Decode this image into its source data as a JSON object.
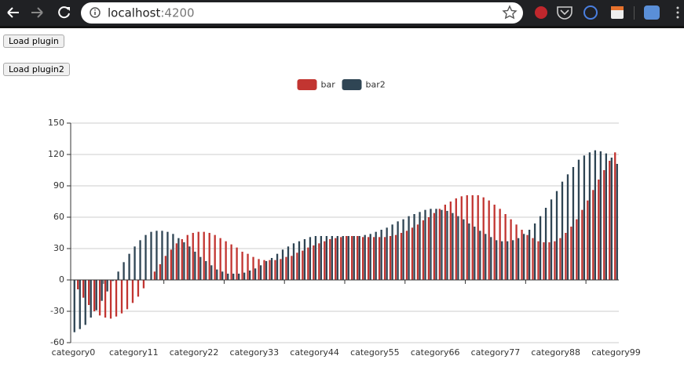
{
  "browser": {
    "host": "localhost",
    "port": ":4200"
  },
  "buttons": [
    "Load plugin",
    "Load plugin2"
  ],
  "chart_data": {
    "type": "bar",
    "categories": [
      "category0",
      null,
      null,
      null,
      null,
      null,
      null,
      null,
      null,
      null,
      null,
      "category11",
      null,
      null,
      null,
      null,
      null,
      null,
      null,
      null,
      null,
      null,
      "category22",
      null,
      null,
      null,
      null,
      null,
      null,
      null,
      null,
      null,
      null,
      "category33",
      null,
      null,
      null,
      null,
      null,
      null,
      null,
      null,
      null,
      null,
      "category44",
      null,
      null,
      null,
      null,
      null,
      null,
      null,
      null,
      null,
      null,
      "category55",
      null,
      null,
      null,
      null,
      null,
      null,
      null,
      null,
      null,
      null,
      "category66",
      null,
      null,
      null,
      null,
      null,
      null,
      null,
      null,
      null,
      null,
      "category77",
      null,
      null,
      null,
      null,
      null,
      null,
      null,
      null,
      null,
      null,
      "category88",
      null,
      null,
      null,
      null,
      null,
      null,
      null,
      null,
      null,
      null,
      "category99"
    ],
    "series": [
      {
        "name": "bar",
        "color": "#c23531",
        "values": [
          0,
          -9,
          -17,
          -24,
          -30,
          -34,
          -36,
          -37,
          -35,
          -32,
          -28,
          -22,
          -16,
          -8,
          0,
          8,
          15,
          23,
          29,
          35,
          39,
          43,
          45,
          46,
          46,
          45,
          43,
          40,
          37,
          34,
          31,
          27,
          25,
          22,
          20,
          19,
          19,
          19,
          20,
          22,
          23,
          26,
          28,
          31,
          33,
          35,
          37,
          39,
          40,
          41,
          42,
          42,
          42,
          41,
          41,
          41,
          41,
          41,
          42,
          43,
          45,
          47,
          50,
          53,
          57,
          60,
          64,
          68,
          72,
          75,
          78,
          80,
          81,
          81,
          81,
          79,
          76,
          72,
          68,
          63,
          58,
          53,
          48,
          43,
          40,
          37,
          36,
          36,
          37,
          40,
          45,
          51,
          58,
          67,
          76,
          86,
          96,
          105,
          114,
          122
        ]
      },
      {
        "name": "bar2",
        "color": "#2f4554",
        "values": [
          -50,
          -47,
          -43,
          -36,
          -29,
          -20,
          -11,
          -1,
          8,
          17,
          25,
          32,
          38,
          43,
          46,
          47,
          47,
          46,
          44,
          40,
          36,
          32,
          27,
          22,
          18,
          14,
          10,
          8,
          6,
          6,
          6,
          7,
          9,
          11,
          14,
          18,
          21,
          25,
          29,
          32,
          35,
          37,
          39,
          41,
          42,
          42,
          42,
          42,
          42,
          42,
          42,
          42,
          42,
          43,
          44,
          46,
          48,
          50,
          53,
          56,
          58,
          61,
          63,
          65,
          67,
          68,
          68,
          67,
          66,
          64,
          61,
          58,
          54,
          51,
          47,
          44,
          41,
          38,
          37,
          37,
          38,
          40,
          44,
          48,
          54,
          61,
          69,
          77,
          85,
          94,
          101,
          108,
          115,
          119,
          122,
          124,
          123,
          121,
          117,
          111
        ]
      }
    ],
    "ylim": [
      -60,
      150
    ],
    "yticks": [
      -60,
      -30,
      0,
      30,
      60,
      90,
      120,
      150
    ],
    "grid": true,
    "legend": "top"
  }
}
